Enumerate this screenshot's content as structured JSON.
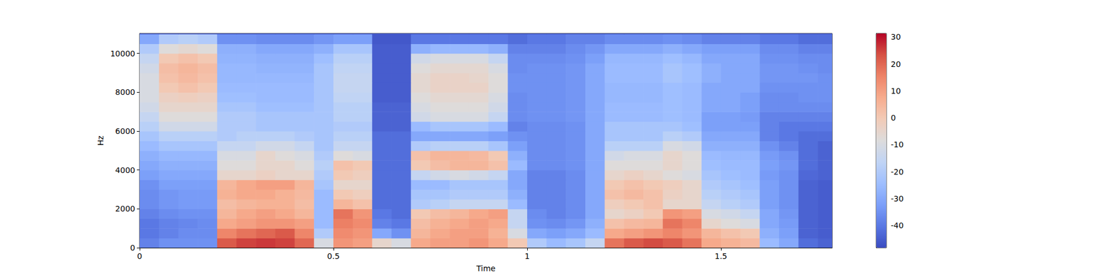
{
  "chart_data": {
    "type": "heatmap",
    "x_label": "Time",
    "y_label": "Hz",
    "xlim": [
      0,
      1.787
    ],
    "xticks": [
      0,
      0.5,
      1,
      1.5
    ],
    "ylim": [
      0,
      11025
    ],
    "yticks": [
      0,
      2000,
      4000,
      6000,
      8000,
      10000
    ],
    "colorbar": {
      "lim": [
        -48.2,
        31.3
      ],
      "ticks": [
        -40,
        -30,
        -20,
        -10,
        0,
        10,
        20,
        30
      ]
    },
    "x_bins": [
      0,
      0.05,
      0.1,
      0.15,
      0.2,
      0.25,
      0.3,
      0.35,
      0.4,
      0.45,
      0.5,
      0.55,
      0.6,
      0.65,
      0.7,
      0.75,
      0.8,
      0.85,
      0.9,
      0.95,
      1,
      1.05,
      1.1,
      1.15,
      1.2,
      1.25,
      1.3,
      1.35,
      1.4,
      1.45,
      1.5,
      1.55,
      1.6,
      1.65,
      1.7,
      1.75,
      1.8
    ],
    "y_bins": [
      0,
      500,
      1000,
      1500,
      2000,
      2500,
      3000,
      3500,
      4000,
      4500,
      5000,
      5500,
      6000,
      6500,
      7000,
      7500,
      8000,
      8500,
      9000,
      9500,
      10000,
      10500,
      11000,
      11500
    ],
    "values": [
      [
        -38,
        -35,
        -35,
        -35,
        22,
        25,
        26,
        25,
        20,
        -10,
        12,
        10,
        -5,
        -10,
        8,
        10,
        10,
        12,
        8,
        0,
        -20,
        -25,
        -22,
        -15,
        18,
        22,
        24,
        22,
        18,
        8,
        6,
        4,
        -25,
        -30,
        -42,
        -44
      ],
      [
        -40,
        -38,
        -36,
        -36,
        15,
        18,
        20,
        22,
        15,
        -20,
        14,
        12,
        -30,
        -35,
        5,
        8,
        10,
        10,
        6,
        -10,
        -30,
        -32,
        -30,
        -25,
        8,
        10,
        12,
        15,
        12,
        5,
        2,
        0,
        -28,
        -32,
        -44,
        -45
      ],
      [
        -40,
        -38,
        -37,
        -36,
        8,
        10,
        12,
        12,
        10,
        -25,
        16,
        14,
        -38,
        -40,
        3,
        6,
        8,
        10,
        8,
        -15,
        -35,
        -36,
        -34,
        -28,
        2,
        4,
        5,
        18,
        15,
        -5,
        -8,
        -10,
        -30,
        -33,
        -44,
        -45
      ],
      [
        -38,
        -36,
        -35,
        -35,
        5,
        8,
        10,
        8,
        5,
        -25,
        18,
        12,
        -40,
        -42,
        0,
        3,
        5,
        8,
        10,
        -15,
        -36,
        -38,
        -36,
        -30,
        -5,
        -3,
        0,
        12,
        10,
        -10,
        -12,
        -15,
        -30,
        -34,
        -44,
        -45
      ],
      [
        -36,
        -34,
        -33,
        -33,
        3,
        5,
        6,
        6,
        3,
        -25,
        5,
        2,
        -42,
        -42,
        -20,
        -18,
        -15,
        -15,
        -15,
        -25,
        -38,
        -38,
        -36,
        -30,
        -2,
        0,
        2,
        -5,
        -5,
        -15,
        -18,
        -20,
        -32,
        -35,
        -44,
        -45
      ],
      [
        -36,
        -34,
        -33,
        -33,
        6,
        8,
        8,
        6,
        4,
        -25,
        0,
        -2,
        -42,
        -42,
        -22,
        -22,
        -20,
        -20,
        -20,
        -28,
        -38,
        -38,
        -36,
        -30,
        2,
        4,
        2,
        -3,
        -5,
        -18,
        -20,
        -22,
        -32,
        -35,
        -44,
        -45
      ],
      [
        -35,
        -32,
        -32,
        -32,
        5,
        8,
        10,
        10,
        5,
        -22,
        -5,
        -5,
        -42,
        -42,
        -25,
        -25,
        -22,
        -22,
        -22,
        -30,
        -38,
        -38,
        -36,
        -30,
        0,
        2,
        0,
        -2,
        -5,
        -20,
        -22,
        -24,
        -32,
        -35,
        -44,
        -45
      ],
      [
        -32,
        -30,
        -30,
        -30,
        -5,
        -5,
        -3,
        -5,
        -5,
        -20,
        0,
        -2,
        -42,
        -42,
        -15,
        -12,
        -10,
        -12,
        -15,
        -30,
        -38,
        -38,
        -36,
        -30,
        -5,
        -3,
        -5,
        -8,
        -10,
        -22,
        -24,
        -25,
        -33,
        -35,
        -43,
        -44
      ],
      [
        -30,
        -28,
        -28,
        -28,
        -8,
        -8,
        -5,
        -5,
        -8,
        -18,
        2,
        0,
        -42,
        -42,
        0,
        3,
        5,
        5,
        2,
        -25,
        -36,
        -36,
        -35,
        -30,
        -8,
        -8,
        -8,
        -5,
        -8,
        -24,
        -25,
        -25,
        -32,
        -34,
        -42,
        -44
      ],
      [
        -28,
        -26,
        -26,
        -26,
        -10,
        -10,
        -5,
        -8,
        -10,
        -20,
        -8,
        -10,
        -42,
        -42,
        2,
        5,
        5,
        4,
        0,
        -28,
        -36,
        -36,
        -35,
        -30,
        -12,
        -10,
        -10,
        -5,
        -8,
        -25,
        -26,
        -26,
        -33,
        -35,
        -42,
        -44
      ],
      [
        -25,
        -22,
        -22,
        -22,
        -15,
        -15,
        -12,
        -12,
        -15,
        -22,
        -15,
        -15,
        -42,
        -42,
        -20,
        -18,
        -18,
        -18,
        -22,
        -32,
        -36,
        -36,
        -35,
        -30,
        -18,
        -18,
        -18,
        -10,
        -12,
        -28,
        -28,
        -28,
        -35,
        -38,
        -42,
        -44
      ],
      [
        -22,
        -18,
        -18,
        -18,
        -20,
        -18,
        -18,
        -18,
        -20,
        -22,
        -18,
        -18,
        -42,
        -42,
        -30,
        -30,
        -30,
        -30,
        -32,
        -35,
        -36,
        -36,
        -35,
        -30,
        -22,
        -22,
        -22,
        -18,
        -20,
        -30,
        -30,
        -30,
        -38,
        -40,
        -42,
        -42
      ],
      [
        -18,
        -12,
        -12,
        -12,
        -20,
        -20,
        -22,
        -22,
        -22,
        -22,
        -20,
        -20,
        -44,
        -44,
        -25,
        -22,
        -22,
        -22,
        -25,
        -38,
        -36,
        -36,
        -35,
        -30,
        -22,
        -22,
        -22,
        -22,
        -24,
        -32,
        -32,
        -32,
        -38,
        -40,
        -40,
        -40
      ],
      [
        -15,
        -8,
        -8,
        -8,
        -20,
        -20,
        -22,
        -22,
        -22,
        -22,
        -18,
        -18,
        -44,
        -44,
        -12,
        -10,
        -10,
        -10,
        -15,
        -36,
        -35,
        -35,
        -34,
        -30,
        -25,
        -25,
        -25,
        -24,
        -25,
        -32,
        -32,
        -33,
        -38,
        -38,
        -38,
        -38
      ],
      [
        -12,
        -5,
        -5,
        -5,
        -22,
        -22,
        -24,
        -24,
        -24,
        -22,
        -18,
        -18,
        -44,
        -44,
        -10,
        -8,
        -8,
        -8,
        -12,
        -36,
        -35,
        -35,
        -34,
        -30,
        -25,
        -25,
        -25,
        -24,
        -25,
        -30,
        -30,
        -32,
        -36,
        -36,
        -36,
        -36
      ],
      [
        -10,
        -3,
        -2,
        -3,
        -24,
        -24,
        -25,
        -25,
        -25,
        -22,
        -16,
        -16,
        -45,
        -45,
        -8,
        -6,
        -6,
        -6,
        -10,
        -36,
        -35,
        -35,
        -34,
        -30,
        -26,
        -26,
        -26,
        -24,
        -25,
        -30,
        -30,
        -32,
        -36,
        -36,
        -35,
        -35
      ],
      [
        -10,
        0,
        2,
        0,
        -25,
        -25,
        -25,
        -25,
        -25,
        -22,
        -15,
        -15,
        -45,
        -45,
        -6,
        -4,
        -4,
        -4,
        -8,
        -35,
        -35,
        -35,
        -34,
        -30,
        -26,
        -26,
        -26,
        -24,
        -25,
        -30,
        -30,
        -30,
        -35,
        -35,
        -35,
        -35
      ],
      [
        -10,
        2,
        4,
        2,
        -26,
        -26,
        -26,
        -26,
        -26,
        -22,
        -15,
        -15,
        -45,
        -45,
        -6,
        -4,
        -4,
        -5,
        -8,
        -35,
        -35,
        -35,
        -34,
        -30,
        -25,
        -25,
        -25,
        -22,
        -24,
        -28,
        -30,
        -30,
        -34,
        -34,
        -34,
        -35
      ],
      [
        -12,
        3,
        5,
        3,
        -26,
        -26,
        -27,
        -27,
        -27,
        -22,
        -16,
        -16,
        -45,
        -45,
        -8,
        -6,
        -6,
        -6,
        -10,
        -36,
        -35,
        -35,
        -34,
        -30,
        -25,
        -25,
        -25,
        -22,
        -24,
        -28,
        -30,
        -30,
        -34,
        -34,
        -35,
        -36
      ],
      [
        -15,
        0,
        2,
        0,
        -27,
        -27,
        -28,
        -28,
        -28,
        -24,
        -18,
        -18,
        -45,
        -45,
        -12,
        -10,
        -10,
        -10,
        -15,
        -36,
        -36,
        -36,
        -35,
        -32,
        -26,
        -26,
        -26,
        -24,
        -26,
        -30,
        -30,
        -30,
        -35,
        -35,
        -36,
        -36
      ],
      [
        -20,
        -8,
        -6,
        -8,
        -28,
        -28,
        -30,
        -30,
        -30,
        -28,
        -22,
        -22,
        -45,
        -45,
        -28,
        -26,
        -26,
        -26,
        -28,
        -38,
        -38,
        -38,
        -36,
        -34,
        -30,
        -30,
        -30,
        -28,
        -30,
        -32,
        -32,
        -32,
        -36,
        -36,
        -38,
        -38
      ],
      [
        -30,
        -20,
        -18,
        -20,
        -35,
        -35,
        -36,
        -36,
        -36,
        -34,
        -32,
        -32,
        -46,
        -46,
        -40,
        -40,
        -40,
        -40,
        -40,
        -42,
        -40,
        -40,
        -38,
        -38,
        -36,
        -36,
        -36,
        -35,
        -36,
        -38,
        -38,
        -38,
        -40,
        -40,
        -42,
        -42
      ],
      [
        -46,
        -46,
        -46,
        -46,
        -46,
        -46,
        -46,
        -46,
        -46,
        -46,
        -46,
        -46,
        -46,
        -46,
        -46,
        -46,
        -46,
        -46,
        -46,
        -46,
        -46,
        -46,
        -46,
        -46,
        -46,
        -46,
        -46,
        -46,
        -46,
        -46,
        -46,
        -46,
        -46,
        -46,
        -46,
        -46
      ]
    ]
  }
}
